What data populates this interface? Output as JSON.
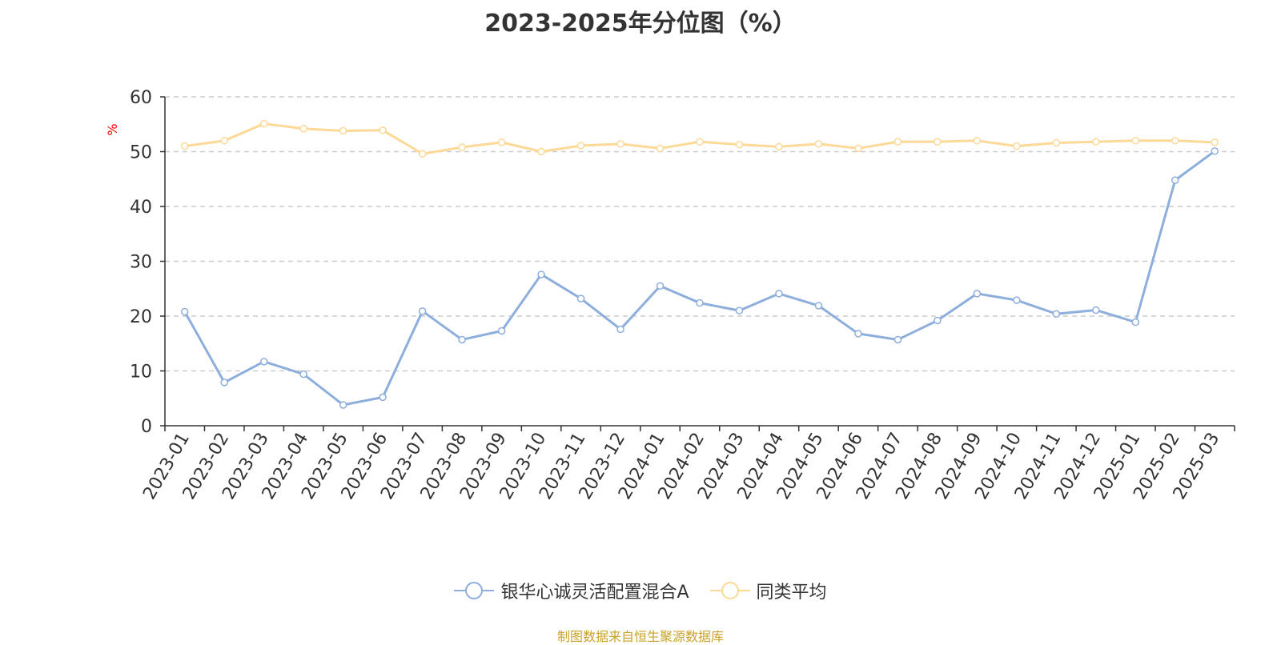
{
  "chart_data": {
    "type": "line",
    "title": "2023-2025年分位图（%）",
    "ylabel": "%",
    "xlabel": "",
    "ylim": [
      0,
      60
    ],
    "yticks": [
      0,
      10,
      20,
      30,
      40,
      50,
      60
    ],
    "grid": true,
    "legend_position": "bottom-center",
    "categories": [
      "2023-01",
      "2023-02",
      "2023-03",
      "2023-04",
      "2023-05",
      "2023-06",
      "2023-07",
      "2023-08",
      "2023-09",
      "2023-10",
      "2023-11",
      "2023-12",
      "2024-01",
      "2024-02",
      "2024-03",
      "2024-04",
      "2024-05",
      "2024-06",
      "2024-07",
      "2024-08",
      "2024-09",
      "2024-10",
      "2024-11",
      "2024-12",
      "2025-01",
      "2025-02",
      "2025-03"
    ],
    "series": [
      {
        "name": "银华心诚灵活配置混合A",
        "color": "#8eaedc",
        "values": [
          20.8,
          7.9,
          11.7,
          9.4,
          3.8,
          5.2,
          20.9,
          15.7,
          17.3,
          27.6,
          23.2,
          17.6,
          25.5,
          22.4,
          21.0,
          24.1,
          21.9,
          16.8,
          15.7,
          19.2,
          24.1,
          22.9,
          20.4,
          21.1,
          18.9,
          44.8,
          50.1
        ]
      },
      {
        "name": "同类平均",
        "color": "#fcd997",
        "values": [
          51.0,
          52.0,
          55.1,
          54.2,
          53.8,
          53.9,
          49.6,
          50.8,
          51.7,
          50.0,
          51.1,
          51.4,
          50.6,
          51.8,
          51.3,
          50.9,
          51.4,
          50.6,
          51.8,
          51.8,
          52.0,
          51.0,
          51.6,
          51.8,
          52.0,
          52.0,
          51.7
        ]
      }
    ]
  },
  "legend": {
    "items": [
      "银华心诚灵活配置混合A",
      "同类平均"
    ]
  },
  "source": "制图数据来自恒生聚源数据库"
}
